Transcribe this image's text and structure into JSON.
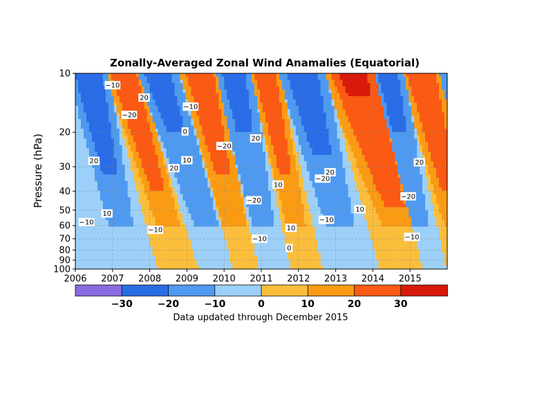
{
  "chart_data": {
    "type": "heatmap",
    "title": "Zonally-Averaged Zonal Wind Anamalies (Equatorial)",
    "xlabel": "",
    "ylabel": "Pressure (hPa)",
    "x_ticks": [
      "2006",
      "2007",
      "2008",
      "2009",
      "2010",
      "2011",
      "2012",
      "2013",
      "2014",
      "2015"
    ],
    "xlim": [
      2006.0,
      2016.0
    ],
    "y_scale": "log",
    "y_ticks": [
      10,
      20,
      30,
      40,
      50,
      60,
      70,
      80,
      90,
      100
    ],
    "ylim": [
      100,
      10
    ],
    "grid": true,
    "colorbar": {
      "orientation": "horizontal",
      "placement": "bottom",
      "levels": [
        -30,
        -20,
        -10,
        0,
        10,
        20,
        30
      ],
      "tick_labels": [
        "−30",
        "−20",
        "−10",
        "0",
        "10",
        "20",
        "30"
      ],
      "colors": [
        "#8a6bdf",
        "#2a6de6",
        "#4f9af0",
        "#9dd0f8",
        "#fbbe3c",
        "#fa9b14",
        "#fa5a14",
        "#d81a0a"
      ]
    },
    "contour_labels": [
      {
        "text": "−10",
        "year": 2007.0,
        "p": 11.5
      },
      {
        "text": "20",
        "year": 2007.85,
        "p": 13.3
      },
      {
        "text": "−20",
        "year": 2007.45,
        "p": 16.3
      },
      {
        "text": "−10",
        "year": 2009.1,
        "p": 14.8
      },
      {
        "text": "0",
        "year": 2008.95,
        "p": 19.8
      },
      {
        "text": "20",
        "year": 2006.5,
        "p": 28.0
      },
      {
        "text": "20",
        "year": 2008.65,
        "p": 30.5
      },
      {
        "text": "10",
        "year": 2009.0,
        "p": 27.8
      },
      {
        "text": "−20",
        "year": 2010.0,
        "p": 23.5
      },
      {
        "text": "20",
        "year": 2010.85,
        "p": 21.5
      },
      {
        "text": "10",
        "year": 2006.85,
        "p": 52.0
      },
      {
        "text": "−10",
        "year": 2006.3,
        "p": 57.5
      },
      {
        "text": "−10",
        "year": 2008.15,
        "p": 63.0
      },
      {
        "text": "−20",
        "year": 2010.8,
        "p": 44.5
      },
      {
        "text": "10",
        "year": 2011.45,
        "p": 37.0
      },
      {
        "text": "−10",
        "year": 2010.95,
        "p": 70.0
      },
      {
        "text": "10",
        "year": 2011.8,
        "p": 61.5
      },
      {
        "text": "0",
        "year": 2011.75,
        "p": 78.0
      },
      {
        "text": "−20",
        "year": 2012.65,
        "p": 34.5
      },
      {
        "text": "20",
        "year": 2012.85,
        "p": 32.0
      },
      {
        "text": "−10",
        "year": 2012.75,
        "p": 56.0
      },
      {
        "text": "10",
        "year": 2013.65,
        "p": 49.5
      },
      {
        "text": "20",
        "year": 2015.25,
        "p": 28.5
      },
      {
        "text": "−20",
        "year": 2014.95,
        "p": 42.5
      },
      {
        "text": "−10",
        "year": 2015.05,
        "p": 68.5
      }
    ],
    "phase_fronts": [
      {
        "name": "easterly-2006",
        "sign": -1,
        "mag": 28,
        "top_year": 2005.9,
        "top_width": 0.9,
        "slope": 1.25,
        "base_width": 0.9
      },
      {
        "name": "westerly-2007",
        "sign": 1,
        "mag": 30,
        "top_year": 2006.9,
        "top_width": 0.8,
        "slope": 1.4,
        "base_width": 1.1
      },
      {
        "name": "easterly-2008",
        "sign": -1,
        "mag": 24,
        "top_year": 2007.7,
        "top_width": 1.0,
        "slope": 1.55,
        "base_width": 1.1
      },
      {
        "name": "westerly-2009",
        "sign": 1,
        "mag": 28,
        "top_year": 2008.9,
        "top_width": 0.9,
        "slope": 1.2,
        "base_width": 1.0
      },
      {
        "name": "easterly-2010",
        "sign": -1,
        "mag": 24,
        "top_year": 2009.8,
        "top_width": 0.9,
        "slope": 1.15,
        "base_width": 0.9
      },
      {
        "name": "westerly-2011",
        "sign": 1,
        "mag": 28,
        "top_year": 2010.75,
        "top_width": 0.7,
        "slope": 1.2,
        "base_width": 0.9
      },
      {
        "name": "easterly-2012",
        "sign": -1,
        "mag": 26,
        "top_year": 2011.55,
        "top_width": 1.1,
        "slope": 1.3,
        "base_width": 1.0
      },
      {
        "name": "westerly-2013",
        "sign": 1,
        "mag": 32,
        "top_year": 2012.8,
        "top_width": 1.3,
        "slope": 1.4,
        "base_width": 1.2
      },
      {
        "name": "easterly-2014",
        "sign": -1,
        "mag": 24,
        "top_year": 2014.0,
        "top_width": 0.8,
        "slope": 1.2,
        "base_width": 0.9
      },
      {
        "name": "westerly-2015",
        "sign": 1,
        "mag": 30,
        "top_year": 2014.85,
        "top_width": 0.9,
        "slope": 1.25,
        "base_width": 1.0
      },
      {
        "name": "easterly-2016",
        "sign": -1,
        "mag": 24,
        "top_year": 2015.85,
        "top_width": 0.9,
        "slope": 1.2,
        "base_width": 0.9
      }
    ]
  },
  "footnote": "Data updated through December 2015"
}
